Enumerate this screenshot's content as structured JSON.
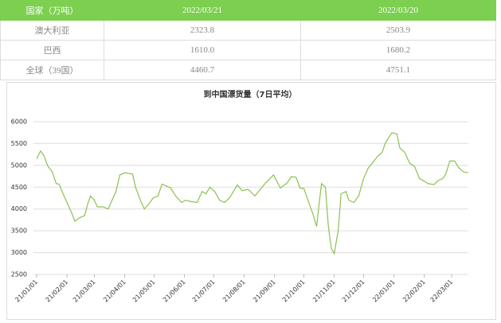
{
  "table": {
    "header": [
      "国家（万吨）",
      "2022/03/21",
      "2022/03/20"
    ],
    "rows": [
      [
        "澳大利亚",
        "2323.8",
        "2503.9"
      ],
      [
        "巴西",
        "1610.0",
        "1680.2"
      ],
      [
        "全球（39国）",
        "4460.7",
        "4751.1"
      ]
    ]
  },
  "chart_data": {
    "type": "line",
    "title": "到中国漂货量（7日平均）",
    "x": [
      "21/01/01",
      "21/01/05",
      "21/01/09",
      "21/01/12",
      "21/01/17",
      "21/01/21",
      "21/01/24",
      "21/01/27",
      "21/02/01",
      "21/02/06",
      "21/02/09",
      "21/02/14",
      "21/02/19",
      "21/02/22",
      "21/02/25",
      "21/03/01",
      "21/03/04",
      "21/03/10",
      "21/03/15",
      "21/03/18",
      "21/03/23",
      "21/03/27",
      "21/04/01",
      "21/04/09",
      "21/04/12",
      "21/04/17",
      "21/04/21",
      "21/04/25",
      "21/04/30",
      "21/05/05",
      "21/05/09",
      "21/05/14",
      "21/05/18",
      "21/05/23",
      "21/05/29",
      "21/06/02",
      "21/06/08",
      "21/06/14",
      "21/06/19",
      "21/06/23",
      "21/06/27",
      "21/07/02",
      "21/07/07",
      "21/07/12",
      "21/07/17",
      "21/07/25",
      "21/07/30",
      "21/08/05",
      "21/08/12",
      "21/08/23",
      "21/08/31",
      "21/09/07",
      "21/09/14",
      "21/09/18",
      "21/09/23",
      "21/09/27",
      "21/10/01",
      "21/10/06",
      "21/10/10",
      "21/10/14",
      "21/10/17",
      "21/10/19",
      "21/10/23",
      "21/10/26",
      "21/10/29",
      "21/11/01",
      "21/11/05",
      "21/11/08",
      "21/11/13",
      "21/11/16",
      "21/11/21",
      "21/11/26",
      "21/12/01",
      "21/12/06",
      "21/12/10",
      "21/12/15",
      "21/12/20",
      "21/12/23",
      "21/12/27",
      "21/12/30",
      "22/01/04",
      "22/01/07",
      "22/01/12",
      "22/01/17",
      "22/01/22",
      "22/01/27",
      "22/01/31",
      "22/02/05",
      "22/02/11",
      "22/02/15",
      "22/02/20",
      "22/02/23",
      "22/02/27",
      "22/03/04",
      "22/03/08",
      "22/03/13",
      "22/03/18"
    ],
    "series": [
      {
        "color": "#8cc152",
        "values": [
          5150,
          5330,
          5200,
          5000,
          4850,
          4580,
          4570,
          4400,
          4150,
          3900,
          3720,
          3800,
          3850,
          4100,
          4300,
          4200,
          4050,
          4050,
          4000,
          4150,
          4400,
          4780,
          4830,
          4800,
          4500,
          4200,
          4000,
          4100,
          4250,
          4300,
          4570,
          4520,
          4480,
          4300,
          4150,
          4200,
          4170,
          4150,
          4400,
          4350,
          4500,
          4400,
          4200,
          4150,
          4250,
          4550,
          4420,
          4450,
          4300,
          4600,
          4780,
          4480,
          4600,
          4740,
          4730,
          4480,
          4470,
          4150,
          3900,
          3600,
          4200,
          4580,
          4500,
          3600,
          3100,
          2980,
          3500,
          4350,
          4400,
          4200,
          4150,
          4300,
          4700,
          4950,
          5050,
          5200,
          5300,
          5500,
          5650,
          5750,
          5720,
          5400,
          5300,
          5050,
          4980,
          4700,
          4650,
          4580,
          4560,
          4650,
          4700,
          4800,
          5100,
          5100,
          4950,
          4850,
          4830
        ]
      }
    ],
    "xlim": [
      "21/01/01",
      "22/03/18"
    ],
    "xticks": [
      "21/01/01",
      "21/02/01",
      "21/03/01",
      "21/04/01",
      "21/05/01",
      "21/06/01",
      "21/07/01",
      "21/08/01",
      "21/09/01",
      "21/10/01",
      "21/11/01",
      "21/12/01",
      "22/01/01",
      "22/02/01",
      "22/03/01"
    ],
    "ylim": [
      2500,
      6000
    ],
    "yticks": [
      2500,
      3000,
      3500,
      4000,
      4500,
      5000,
      5500,
      6000
    ],
    "grid": true
  }
}
